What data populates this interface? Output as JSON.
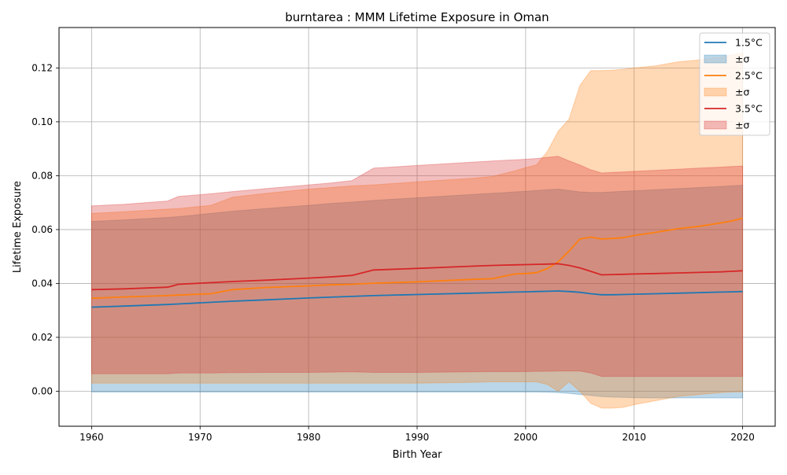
{
  "chart_data": {
    "type": "line",
    "title": "burntarea : MMM Lifetime Exposure in Oman",
    "xlabel": "Birth Year",
    "ylabel": "Lifetime Exposure",
    "xlim": [
      1957,
      2023
    ],
    "ylim": [
      -0.013,
      0.135
    ],
    "xticks": [
      1960,
      1970,
      1980,
      1990,
      2000,
      2010,
      2020
    ],
    "xtick_labels": [
      "1960",
      "1970",
      "1980",
      "1990",
      "2000",
      "2010",
      "2020"
    ],
    "yticks": [
      0.0,
      0.02,
      0.04,
      0.06,
      0.08,
      0.1,
      0.12
    ],
    "ytick_labels": [
      "0.00",
      "0.02",
      "0.04",
      "0.06",
      "0.08",
      "0.10",
      "0.12"
    ],
    "grid": true,
    "legend_position": "top-right",
    "x": [
      1960,
      1963,
      1967,
      1968,
      1971,
      1973,
      1976,
      1980,
      1982,
      1984,
      1986,
      1990,
      1995,
      1997,
      1998,
      1999,
      2000,
      2001,
      2002,
      2003,
      2004,
      2005,
      2006,
      2007,
      2008,
      2009,
      2010,
      2012,
      2014,
      2016,
      2018,
      2019,
      2020
    ],
    "series": [
      {
        "name": "1.5°C",
        "color": "#1f77b4",
        "band_label": "±σ",
        "values": [
          0.0312,
          0.0316,
          0.0322,
          0.0324,
          0.033,
          0.0334,
          0.0339,
          0.0346,
          0.0349,
          0.0352,
          0.0355,
          0.0359,
          0.0364,
          0.0366,
          0.0367,
          0.0368,
          0.0369,
          0.037,
          0.0371,
          0.0372,
          0.037,
          0.0367,
          0.0362,
          0.0358,
          0.0358,
          0.0359,
          0.036,
          0.0362,
          0.0364,
          0.0366,
          0.0368,
          0.0369,
          0.037
        ],
        "upper": [
          0.063,
          0.0636,
          0.0645,
          0.0648,
          0.066,
          0.0668,
          0.0678,
          0.069,
          0.0697,
          0.0702,
          0.0708,
          0.0718,
          0.073,
          0.0735,
          0.0737,
          0.074,
          0.0742,
          0.0745,
          0.0748,
          0.075,
          0.0745,
          0.074,
          0.0738,
          0.0738,
          0.074,
          0.0742,
          0.0744,
          0.0748,
          0.0752,
          0.0756,
          0.076,
          0.0762,
          0.0765
        ],
        "lower": [
          -0.0003,
          -0.0003,
          -0.0003,
          -0.0003,
          -0.0003,
          -0.0003,
          -0.0003,
          -0.0003,
          -0.0003,
          -0.0003,
          -0.0003,
          -0.0003,
          -0.0003,
          -0.0003,
          -0.0003,
          -0.0003,
          -0.0003,
          -0.0003,
          -0.0004,
          -0.0005,
          -0.0008,
          -0.0012,
          -0.0016,
          -0.002,
          -0.0022,
          -0.0023,
          -0.0024,
          -0.0025,
          -0.0025,
          -0.0025,
          -0.0025,
          -0.0025,
          -0.0025
        ]
      },
      {
        "name": "2.5°C",
        "color": "#ff7f0e",
        "band_label": "±σ",
        "values": [
          0.0345,
          0.035,
          0.0355,
          0.0357,
          0.0362,
          0.0377,
          0.0385,
          0.0391,
          0.0395,
          0.0397,
          0.0401,
          0.0406,
          0.0415,
          0.0418,
          0.0427,
          0.0435,
          0.0437,
          0.044,
          0.0455,
          0.048,
          0.052,
          0.0565,
          0.0572,
          0.0565,
          0.0567,
          0.057,
          0.0578,
          0.059,
          0.0603,
          0.0612,
          0.0625,
          0.0632,
          0.0642
        ],
        "upper": [
          0.066,
          0.0666,
          0.0676,
          0.0678,
          0.069,
          0.072,
          0.0734,
          0.075,
          0.0756,
          0.0762,
          0.0766,
          0.0777,
          0.079,
          0.0797,
          0.0808,
          0.0818,
          0.083,
          0.084,
          0.089,
          0.0965,
          0.101,
          0.1135,
          0.119,
          0.119,
          0.1192,
          0.1195,
          0.12,
          0.1208,
          0.1222,
          0.123,
          0.124,
          0.1248,
          0.1255
        ],
        "lower": [
          0.003,
          0.003,
          0.003,
          0.003,
          0.003,
          0.003,
          0.003,
          0.003,
          0.003,
          0.003,
          0.003,
          0.003,
          0.0033,
          0.0035,
          0.0035,
          0.0035,
          0.0035,
          0.0035,
          0.0025,
          0.0,
          0.0035,
          0.0,
          -0.0045,
          -0.0063,
          -0.0063,
          -0.006,
          -0.005,
          -0.0035,
          -0.002,
          -0.0012,
          -0.0005,
          -0.0003,
          -0.0002
        ]
      },
      {
        "name": "3.5°C",
        "color": "#d62728",
        "band_label": "±σ",
        "values": [
          0.0377,
          0.038,
          0.0386,
          0.0397,
          0.0403,
          0.0407,
          0.0412,
          0.042,
          0.0424,
          0.043,
          0.045,
          0.0456,
          0.0464,
          0.0467,
          0.0468,
          0.0469,
          0.047,
          0.0471,
          0.0472,
          0.0473,
          0.0467,
          0.0458,
          0.0445,
          0.0432,
          0.0433,
          0.0434,
          0.0435,
          0.0437,
          0.0439,
          0.0441,
          0.0443,
          0.0445,
          0.0447
        ],
        "upper": [
          0.0688,
          0.0694,
          0.0706,
          0.0723,
          0.0733,
          0.0741,
          0.0752,
          0.0766,
          0.0773,
          0.0782,
          0.0828,
          0.0838,
          0.085,
          0.0855,
          0.0857,
          0.0859,
          0.0861,
          0.0864,
          0.0868,
          0.0872,
          0.0855,
          0.084,
          0.0822,
          0.081,
          0.0812,
          0.0814,
          0.0816,
          0.082,
          0.0824,
          0.0828,
          0.0832,
          0.0834,
          0.0836
        ],
        "lower": [
          0.0065,
          0.0065,
          0.0065,
          0.0068,
          0.0068,
          0.0069,
          0.007,
          0.007,
          0.0071,
          0.0072,
          0.007,
          0.007,
          0.0072,
          0.0073,
          0.0073,
          0.0073,
          0.0073,
          0.0074,
          0.0074,
          0.0075,
          0.0075,
          0.0075,
          0.0068,
          0.0055,
          0.0055,
          0.0055,
          0.0055,
          0.0055,
          0.0055,
          0.0055,
          0.0055,
          0.0055,
          0.0055
        ]
      }
    ]
  }
}
